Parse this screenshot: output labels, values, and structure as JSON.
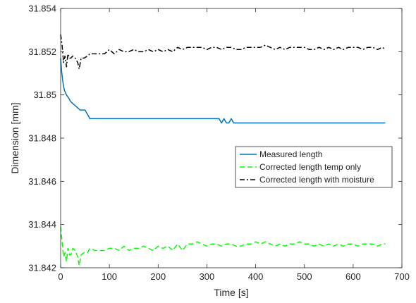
{
  "chart_data": {
    "type": "line",
    "title": "",
    "xlabel": "Time [s]",
    "ylabel": "Dimension [mm]",
    "xlim": [
      0,
      700
    ],
    "ylim": [
      31.842,
      31.854
    ],
    "x_ticks": [
      0,
      100,
      200,
      300,
      400,
      500,
      600,
      700
    ],
    "y_ticks": [
      31.842,
      31.844,
      31.846,
      31.848,
      31.85,
      31.852,
      31.854
    ],
    "x_tick_labels": [
      "0",
      "100",
      "200",
      "300",
      "400",
      "500",
      "600",
      "700"
    ],
    "y_tick_labels": [
      "31.842",
      "31.844",
      "31.846",
      "31.848",
      "31.85",
      "31.852",
      "31.854"
    ],
    "grid": false,
    "legend_position": "center-right",
    "series": [
      {
        "name": "Measured length",
        "color": "#0072BD",
        "style": "solid",
        "x": [
          0,
          2,
          4,
          6,
          8,
          10,
          12,
          15,
          18,
          20,
          25,
          30,
          35,
          40,
          50,
          55,
          60,
          70,
          100,
          150,
          200,
          250,
          300,
          325,
          330,
          335,
          340,
          345,
          350,
          355,
          360,
          400,
          500,
          600,
          666
        ],
        "y": [
          31.8517,
          31.8511,
          31.8507,
          31.8504,
          31.8502,
          31.8501,
          31.85,
          31.8499,
          31.8498,
          31.8497,
          31.8496,
          31.8495,
          31.8494,
          31.8493,
          31.8493,
          31.8491,
          31.8489,
          31.8489,
          31.8489,
          31.8489,
          31.8489,
          31.8489,
          31.8489,
          31.8489,
          31.8487,
          31.8489,
          31.8487,
          31.8487,
          31.8489,
          31.8487,
          31.8487,
          31.8487,
          31.8487,
          31.8487,
          31.8487
        ]
      },
      {
        "name": "Corrected length temp only",
        "color": "#00FF00",
        "style": "dashed",
        "x": [
          0,
          3,
          6,
          9,
          12,
          15,
          18,
          21,
          25,
          30,
          35,
          38,
          42,
          48,
          55,
          60,
          70,
          80,
          90,
          100,
          110,
          120,
          130,
          140,
          150,
          160,
          170,
          180,
          190,
          200,
          210,
          220,
          230,
          240,
          250,
          260,
          270,
          280,
          290,
          300,
          310,
          320,
          330,
          340,
          350,
          360,
          370,
          380,
          390,
          400,
          410,
          420,
          430,
          440,
          450,
          460,
          470,
          480,
          490,
          500,
          510,
          520,
          530,
          540,
          550,
          560,
          570,
          580,
          590,
          600,
          610,
          620,
          630,
          640,
          650,
          660,
          666
        ],
        "y": [
          31.8439,
          31.8432,
          31.8425,
          31.8427,
          31.8423,
          31.8429,
          31.8426,
          31.8426,
          31.8429,
          31.8428,
          31.8425,
          31.8421,
          31.8426,
          31.8427,
          31.8427,
          31.8429,
          31.8428,
          31.8428,
          31.8428,
          31.8429,
          31.8429,
          31.8428,
          31.843,
          31.8428,
          31.8429,
          31.8429,
          31.843,
          31.8429,
          31.8428,
          31.843,
          31.8429,
          31.843,
          31.8428,
          31.8431,
          31.8428,
          31.8431,
          31.8431,
          31.8432,
          31.8431,
          31.843,
          31.8431,
          31.8431,
          31.843,
          31.8431,
          31.8431,
          31.843,
          31.843,
          31.8431,
          31.8431,
          31.8432,
          31.8431,
          31.8432,
          31.8431,
          31.843,
          31.8431,
          31.843,
          31.8431,
          31.8431,
          31.8432,
          31.8431,
          31.8431,
          31.843,
          31.8431,
          31.843,
          31.8431,
          31.843,
          31.8431,
          31.843,
          31.8431,
          31.8431,
          31.843,
          31.8431,
          31.8431,
          31.8431,
          31.843,
          31.8431,
          31.8431
        ]
      },
      {
        "name": "Corrected length with moisture",
        "color": "#000000",
        "style": "dashdot",
        "x": [
          0,
          3,
          6,
          9,
          12,
          15,
          18,
          21,
          25,
          30,
          35,
          38,
          42,
          48,
          55,
          60,
          70,
          80,
          90,
          100,
          110,
          120,
          130,
          140,
          150,
          160,
          170,
          180,
          190,
          200,
          210,
          220,
          230,
          240,
          250,
          260,
          270,
          280,
          290,
          300,
          310,
          320,
          330,
          340,
          350,
          360,
          370,
          380,
          390,
          400,
          410,
          420,
          430,
          440,
          450,
          460,
          470,
          480,
          490,
          500,
          510,
          520,
          530,
          540,
          550,
          560,
          570,
          580,
          590,
          600,
          610,
          620,
          630,
          640,
          650,
          660,
          666
        ],
        "y": [
          31.8528,
          31.8523,
          31.8515,
          31.8518,
          31.8513,
          31.8519,
          31.8517,
          31.8517,
          31.8518,
          31.8517,
          31.8515,
          31.8512,
          31.8517,
          31.8517,
          31.8518,
          31.8519,
          31.8519,
          31.8519,
          31.8519,
          31.8521,
          31.8519,
          31.8521,
          31.852,
          31.852,
          31.8521,
          31.852,
          31.852,
          31.8521,
          31.852,
          31.8521,
          31.852,
          31.8521,
          31.852,
          31.8522,
          31.8521,
          31.8522,
          31.8522,
          31.8522,
          31.8522,
          31.8521,
          31.8522,
          31.8522,
          31.8521,
          31.8522,
          31.8522,
          31.8521,
          31.8521,
          31.8522,
          31.8522,
          31.8522,
          31.8522,
          31.8523,
          31.8522,
          31.8521,
          31.8522,
          31.8521,
          31.8522,
          31.8522,
          31.8522,
          31.8522,
          31.8521,
          31.8521,
          31.8522,
          31.8521,
          31.8522,
          31.8521,
          31.8522,
          31.8521,
          31.8522,
          31.8522,
          31.8522,
          31.8521,
          31.8522,
          31.8522,
          31.8521,
          31.8522,
          31.8521
        ]
      }
    ]
  }
}
